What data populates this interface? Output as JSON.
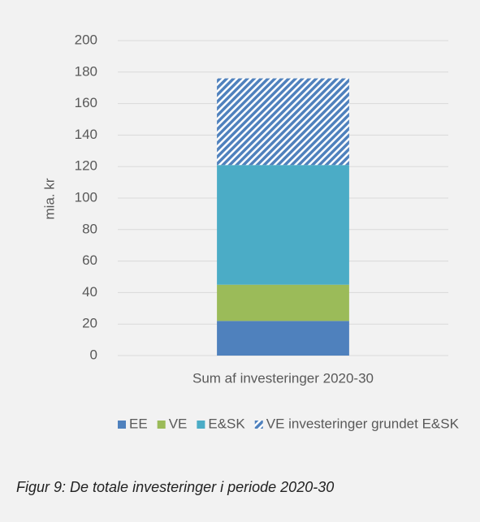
{
  "chart_data": {
    "type": "stacked_bar",
    "y_label": "mia. kr",
    "categories": [
      "Sum af investeringer 2020-30"
    ],
    "series": [
      {
        "name": "EE",
        "color": "#4f81bd",
        "values": [
          22
        ]
      },
      {
        "name": "VE",
        "color": "#9bbb59",
        "values": [
          23
        ]
      },
      {
        "name": "E&SK",
        "color": "#4bacc6",
        "values": [
          76
        ]
      },
      {
        "name": "VE investeringer grundet E&SK",
        "color": "#4f81bd",
        "hatch": true,
        "values": [
          55
        ]
      }
    ],
    "ylim": [
      0,
      200
    ],
    "yticks": [
      0,
      20,
      40,
      60,
      80,
      100,
      120,
      140,
      160,
      180,
      200
    ],
    "grid": true,
    "legend": "bottom"
  },
  "caption": "Figur 9: De totale investeringer i periode 2020-30"
}
